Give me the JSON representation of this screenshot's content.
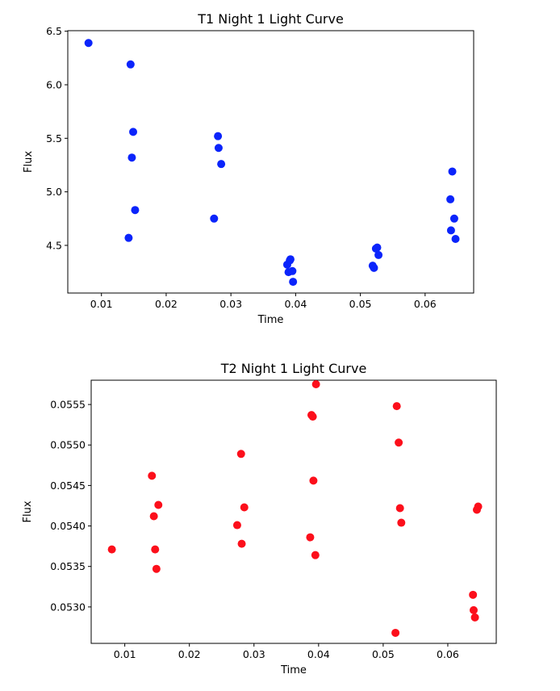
{
  "chart_data": [
    {
      "type": "scatter",
      "title": "T1 Night 1 Light Curve",
      "xlabel": "Time",
      "ylabel": "Flux",
      "xlim": [
        0.0048,
        0.0675
      ],
      "ylim": [
        4.055,
        6.505
      ],
      "xticks": [
        "0.01",
        "0.02",
        "0.03",
        "0.04",
        "0.05",
        "0.06"
      ],
      "yticks": [
        "4.5",
        "5.0",
        "5.5",
        "6.0",
        "6.5"
      ],
      "grid": false,
      "color": "#0b24fb",
      "x": [
        0.008,
        0.0142,
        0.0145,
        0.0147,
        0.0149,
        0.0152,
        0.0274,
        0.028,
        0.0281,
        0.0285,
        0.0387,
        0.0389,
        0.0391,
        0.0392,
        0.0395,
        0.0396,
        0.0519,
        0.0521,
        0.0524,
        0.0526,
        0.0528,
        0.0639,
        0.064,
        0.0642,
        0.0645,
        0.0647
      ],
      "y": [
        6.39,
        4.57,
        6.19,
        5.32,
        5.56,
        4.83,
        4.75,
        5.52,
        5.41,
        5.26,
        4.32,
        4.25,
        4.36,
        4.37,
        4.26,
        4.16,
        4.31,
        4.29,
        4.47,
        4.48,
        4.41,
        4.93,
        4.64,
        5.19,
        4.75,
        4.56
      ]
    },
    {
      "type": "scatter",
      "title": "T2 Night 1 Light Curve",
      "xlabel": "Time",
      "ylabel": "Flux",
      "xlim": [
        0.0048,
        0.0675
      ],
      "ylim": [
        0.05255,
        0.0558
      ],
      "xticks": [
        "0.01",
        "0.02",
        "0.03",
        "0.04",
        "0.05",
        "0.06"
      ],
      "yticks": [
        "0.0530",
        "0.0535",
        "0.0540",
        "0.0545",
        "0.0550",
        "0.0555"
      ],
      "grid": false,
      "color": "#fc0f1b",
      "x": [
        0.008,
        0.0142,
        0.0145,
        0.0147,
        0.0149,
        0.0152,
        0.0274,
        0.028,
        0.0281,
        0.0285,
        0.0387,
        0.0389,
        0.0391,
        0.0392,
        0.0395,
        0.0396,
        0.0519,
        0.0521,
        0.0524,
        0.0526,
        0.0528,
        0.0639,
        0.064,
        0.0642,
        0.0645,
        0.0647
      ],
      "y": [
        0.05371,
        0.05462,
        0.05412,
        0.05371,
        0.05347,
        0.05426,
        0.05401,
        0.05489,
        0.05378,
        0.05423,
        0.05386,
        0.05537,
        0.05535,
        0.05456,
        0.05364,
        0.05575,
        0.05268,
        0.05548,
        0.05503,
        0.05422,
        0.05404,
        0.05315,
        0.05296,
        0.05287,
        0.0542,
        0.05424
      ]
    }
  ]
}
